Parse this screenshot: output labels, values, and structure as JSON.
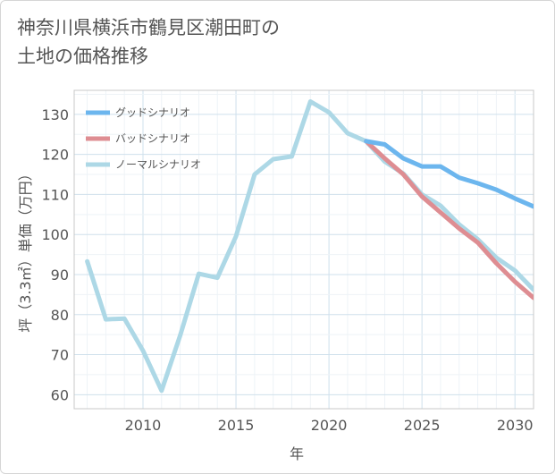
{
  "title_line1": "神奈川県横浜市鶴見区潮田町の",
  "title_line2": "土地の価格推移",
  "chart_data": {
    "type": "line",
    "xlabel": "年",
    "ylabel": "坪（3.3㎡）単価（万円）",
    "xlim": [
      2006.3,
      2031
    ],
    "ylim": [
      56.5,
      136
    ],
    "xticks": [
      2010,
      2015,
      2020,
      2025,
      2030
    ],
    "yticks": [
      60,
      70,
      80,
      90,
      100,
      110,
      120,
      130
    ],
    "grid": true,
    "legend_position": "top-left",
    "series": [
      {
        "name": "グッドシナリオ",
        "color": "#6cb6ee",
        "x": [
          2022,
          2023,
          2024,
          2025,
          2026,
          2027,
          2028,
          2029,
          2030,
          2031
        ],
        "y": [
          123.3,
          122.5,
          119.0,
          117.0,
          117.0,
          114.2,
          112.8,
          111.2,
          109.0,
          107.0
        ]
      },
      {
        "name": "バッドシナリオ",
        "color": "#de8d92",
        "x": [
          2022,
          2023,
          2024,
          2025,
          2026,
          2027,
          2028,
          2029,
          2030,
          2031
        ],
        "y": [
          123.3,
          119.0,
          115.0,
          109.5,
          105.5,
          101.5,
          98.0,
          92.8,
          88.2,
          84.2
        ]
      },
      {
        "name": "ノーマルシナリオ",
        "color": "#add8e6",
        "x": [
          2007,
          2008,
          2009,
          2010,
          2011,
          2012,
          2013,
          2014,
          2015,
          2016,
          2017,
          2018,
          2019,
          2020,
          2021,
          2022,
          2023,
          2024,
          2025,
          2026,
          2027,
          2028,
          2029,
          2030,
          2031
        ],
        "y": [
          93.3,
          78.8,
          79.0,
          71.0,
          61.0,
          74.8,
          90.2,
          89.2,
          99.5,
          115.0,
          118.8,
          119.5,
          133.2,
          130.5,
          125.3,
          123.3,
          118.2,
          115.2,
          110.0,
          107.2,
          102.5,
          98.8,
          94.2,
          91.0,
          86.2
        ]
      }
    ]
  }
}
